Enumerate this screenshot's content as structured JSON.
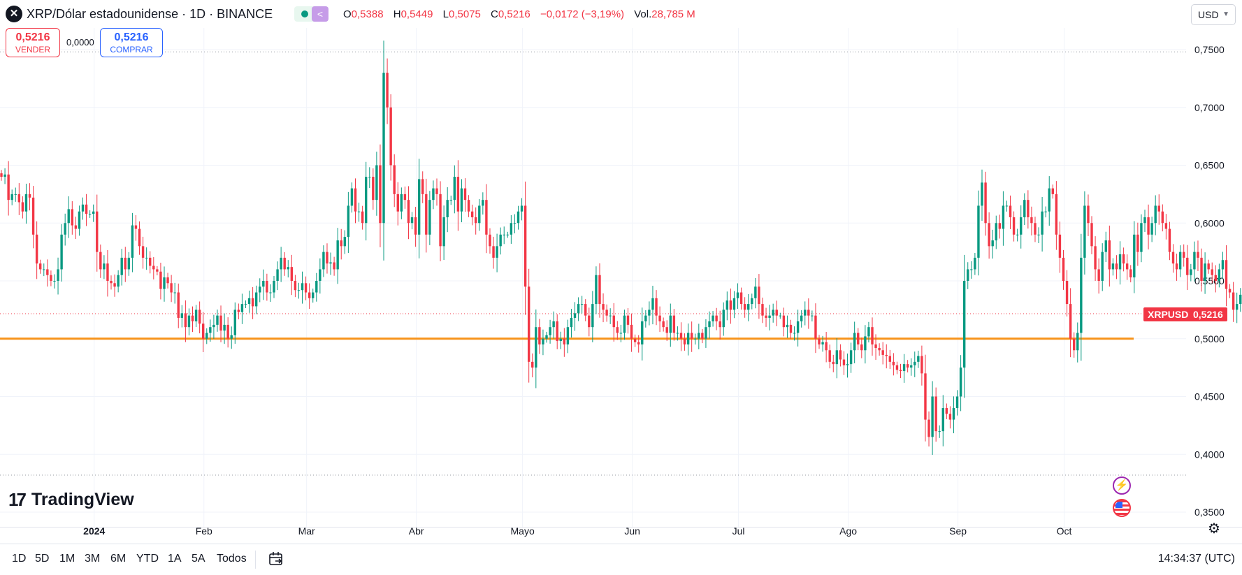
{
  "header": {
    "symbol_title": "XRP/Dólar estadounidense · 1D · BINANCE",
    "ohlc": {
      "o_label": "O",
      "o_value": "0,5388",
      "h_label": "H",
      "h_value": "0,5449",
      "l_label": "L",
      "l_value": "0,5075",
      "c_label": "C",
      "c_value": "0,5216",
      "change": "−0,0172 (−3,19%)",
      "vol_label": "Vol.",
      "vol_value": "28,785 M"
    },
    "currency": "USD",
    "icons": {
      "symbol": "xrp-logo-icon",
      "status": "market-status-dot-icon",
      "share": "share-icon",
      "dropdown": "chevron-down-icon"
    }
  },
  "trade": {
    "sell_price": "0,5216",
    "sell_label": "VENDER",
    "spread": "0,0000",
    "buy_price": "0,5216",
    "buy_label": "COMPRAR"
  },
  "price_labels": {
    "symbol": "XRPUSD",
    "last_price": "0,5216"
  },
  "brand": "TradingView",
  "footer": {
    "ranges": [
      "1D",
      "5D",
      "1M",
      "3M",
      "6M",
      "YTD",
      "1A",
      "5A",
      "Todos"
    ],
    "clock": "14:34:37 (UTC)",
    "icons": {
      "calendar": "calendar-range-icon",
      "settings": "gear-icon",
      "bolt": "lightning-icon",
      "flag": "us-flag-icon"
    }
  },
  "colors": {
    "up": "#089981",
    "down": "#f23645",
    "support_line": "#f7931a",
    "grid": "#f0f3fa",
    "text": "#131722"
  },
  "chart_data": {
    "type": "candlestick",
    "title": "XRP/Dólar estadounidense · 1D · BINANCE",
    "ylim": [
      0.35,
      0.76
    ],
    "y_ticks": [
      0.75,
      0.7,
      0.65,
      0.6,
      0.55,
      0.5,
      0.45,
      0.4,
      0.35
    ],
    "y_tick_labels": [
      "0,7500",
      "0,7000",
      "0,6500",
      "0,6000",
      "0,5500",
      "0,5000",
      "0,4500",
      "0,4000",
      "0,3500"
    ],
    "x_ticks": [
      {
        "label": "2024",
        "date": "2024-01-01"
      },
      {
        "label": "Feb",
        "date": "2024-02-01"
      },
      {
        "label": "Mar",
        "date": "2024-03-01"
      },
      {
        "label": "Abr",
        "date": "2024-04-01"
      },
      {
        "label": "Mayo",
        "date": "2024-05-01"
      },
      {
        "label": "Jun",
        "date": "2024-06-01"
      },
      {
        "label": "Jul",
        "date": "2024-07-01"
      },
      {
        "label": "Ago",
        "date": "2024-08-01"
      },
      {
        "label": "Sep",
        "date": "2024-09-01"
      },
      {
        "label": "Oct",
        "date": "2024-10-01"
      }
    ],
    "first_date": "2023-12-05",
    "close": [
      0.64,
      0.642,
      0.62,
      0.625,
      0.625,
      0.618,
      0.61,
      0.625,
      0.622,
      0.59,
      0.565,
      0.56,
      0.56,
      0.555,
      0.55,
      0.55,
      0.56,
      0.59,
      0.6,
      0.612,
      0.598,
      0.595,
      0.61,
      0.616,
      0.608,
      0.608,
      0.61,
      0.575,
      0.56,
      0.565,
      0.55,
      0.548,
      0.545,
      0.555,
      0.57,
      0.56,
      0.57,
      0.598,
      0.595,
      0.58,
      0.57,
      0.57,
      0.563,
      0.56,
      0.558,
      0.543,
      0.553,
      0.548,
      0.54,
      0.54,
      0.518,
      0.522,
      0.51,
      0.52,
      0.515,
      0.525,
      0.513,
      0.5,
      0.505,
      0.51,
      0.512,
      0.52,
      0.507,
      0.512,
      0.5,
      0.503,
      0.525,
      0.523,
      0.53,
      0.53,
      0.535,
      0.528,
      0.54,
      0.545,
      0.55,
      0.54,
      0.54,
      0.55,
      0.56,
      0.57,
      0.56,
      0.562,
      0.55,
      0.542,
      0.542,
      0.548,
      0.54,
      0.535,
      0.54,
      0.55,
      0.56,
      0.575,
      0.565,
      0.566,
      0.56,
      0.585,
      0.58,
      0.588,
      0.615,
      0.63,
      0.61,
      0.61,
      0.6,
      0.64,
      0.64,
      0.62,
      0.65,
      0.6,
      0.73,
      0.7,
      0.65,
      0.625,
      0.61,
      0.625,
      0.62,
      0.6,
      0.605,
      0.59,
      0.638,
      0.625,
      0.59,
      0.62,
      0.63,
      0.625,
      0.58,
      0.605,
      0.62,
      0.62,
      0.64,
      0.61,
      0.63,
      0.62,
      0.61,
      0.605,
      0.6,
      0.615,
      0.62,
      0.59,
      0.58,
      0.57,
      0.58,
      0.59,
      0.59,
      0.59,
      0.6,
      0.6,
      0.61,
      0.615,
      0.545,
      0.48,
      0.475,
      0.51,
      0.495,
      0.5,
      0.503,
      0.51,
      0.515,
      0.498,
      0.5,
      0.495,
      0.51,
      0.518,
      0.522,
      0.53,
      0.53,
      0.52,
      0.51,
      0.53,
      0.555,
      0.53,
      0.525,
      0.52,
      0.52,
      0.51,
      0.505,
      0.505,
      0.52,
      0.512,
      0.5,
      0.497,
      0.495,
      0.515,
      0.52,
      0.525,
      0.535,
      0.52,
      0.515,
      0.51,
      0.505,
      0.52,
      0.505,
      0.505,
      0.5,
      0.495,
      0.505,
      0.5,
      0.5,
      0.505,
      0.5,
      0.51,
      0.515,
      0.52,
      0.515,
      0.51,
      0.525,
      0.533,
      0.525,
      0.535,
      0.54,
      0.53,
      0.525,
      0.53,
      0.535,
      0.545,
      0.53,
      0.52,
      0.518,
      0.52,
      0.525,
      0.52,
      0.52,
      0.51,
      0.512,
      0.505,
      0.505,
      0.515,
      0.52,
      0.525,
      0.52,
      0.52,
      0.5,
      0.495,
      0.497,
      0.49,
      0.48,
      0.478,
      0.49,
      0.482,
      0.477,
      0.478,
      0.49,
      0.505,
      0.495,
      0.49,
      0.502,
      0.51,
      0.495,
      0.492,
      0.49,
      0.486,
      0.485,
      0.48,
      0.477,
      0.473,
      0.472,
      0.478,
      0.475,
      0.477,
      0.48,
      0.485,
      0.47,
      0.43,
      0.415,
      0.45,
      0.42,
      0.42,
      0.44,
      0.435,
      0.43,
      0.44,
      0.45,
      0.475,
      0.55,
      0.56,
      0.56,
      0.57,
      0.615,
      0.635,
      0.6,
      0.58,
      0.585,
      0.6,
      0.595,
      0.615,
      0.615,
      0.605,
      0.59,
      0.59,
      0.605,
      0.62,
      0.605,
      0.6,
      0.59,
      0.59,
      0.61,
      0.61,
      0.63,
      0.625,
      0.59,
      0.57,
      0.55,
      0.53,
      0.5,
      0.49,
      0.505,
      0.57,
      0.615,
      0.6,
      0.58,
      0.56,
      0.55,
      0.575,
      0.585,
      0.56,
      0.565,
      0.56,
      0.573,
      0.565,
      0.56,
      0.553,
      0.59,
      0.575,
      0.6,
      0.605,
      0.59,
      0.6,
      0.615,
      0.61,
      0.6,
      0.595,
      0.575,
      0.565,
      0.56,
      0.575,
      0.57,
      0.555,
      0.56,
      0.575,
      0.57,
      0.55,
      0.565,
      0.56,
      0.555,
      0.55,
      0.56,
      0.568,
      0.543,
      0.54,
      0.525,
      0.53,
      0.538,
      0.532,
      0.54,
      0.555,
      0.57,
      0.595,
      0.585,
      0.565,
      0.59,
      0.59,
      0.59,
      0.58,
      0.588,
      0.59,
      0.59,
      0.59,
      0.595,
      0.588,
      0.597,
      0.6,
      0.585,
      0.59,
      0.59,
      0.597,
      0.602,
      0.64,
      0.62,
      0.61,
      0.595,
      0.535,
      0.5388,
      0.5216
    ],
    "last_price": 0.5216,
    "horizontal_lines": [
      {
        "value": 0.5,
        "style": "solid",
        "color": "#f7931a"
      },
      {
        "value": 0.748,
        "style": "dotted"
      },
      {
        "value": 0.382,
        "style": "dotted"
      },
      {
        "value": 0.5216,
        "style": "dotted",
        "color": "#f23645"
      }
    ],
    "grid": true
  }
}
